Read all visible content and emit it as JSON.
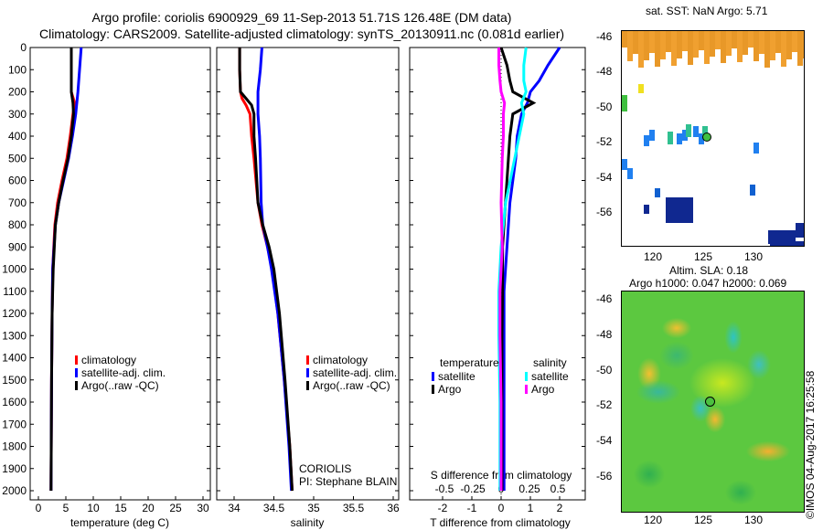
{
  "header": {
    "title_line1": "Argo profile: coriolis 6900929_69 11-Sep-2013 51.71S 126.48E (DM data)",
    "title_line2": "Climatology: CARS2009. Satellite-adjusted climatology: synTS_20130911.nc (0.081d earlier)"
  },
  "colors": {
    "climatology": "#ff0000",
    "satellite": "#0000ff",
    "argo": "#000000",
    "sal_satellite": "#00ffff",
    "sal_argo": "#ff00ff"
  },
  "chart_data": [
    {
      "type": "line",
      "name": "temperature-profile",
      "xlabel": "temperature (deg C)",
      "ylabel": "depth",
      "xlim": [
        -2,
        32
      ],
      "ylim": [
        2060,
        0
      ],
      "xticks": [
        0,
        5,
        10,
        15,
        20,
        25,
        30
      ],
      "yticks": [
        0,
        100,
        200,
        300,
        400,
        500,
        600,
        700,
        800,
        900,
        1000,
        1100,
        1200,
        1300,
        1400,
        1500,
        1600,
        1700,
        1800,
        1900,
        2000
      ],
      "legend": [
        "climatology",
        "satellite-adj. clim.",
        "Argo(..raw -QC)"
      ],
      "depth": [
        0,
        100,
        200,
        250,
        300,
        400,
        500,
        600,
        700,
        800,
        1000,
        1200,
        1500,
        2000
      ],
      "series": [
        {
          "name": "climatology",
          "values": [
            6.0,
            6.0,
            6.0,
            6.6,
            6.3,
            5.8,
            5.2,
            4.3,
            3.5,
            3.0,
            2.6,
            2.5,
            2.4,
            2.3
          ]
        },
        {
          "name": "satellite-adj. clim.",
          "values": [
            7.8,
            7.5,
            7.2,
            7.0,
            6.8,
            6.2,
            5.5,
            4.6,
            3.7,
            3.1,
            2.6,
            2.5,
            2.4,
            2.3
          ]
        },
        {
          "name": "Argo(..raw -QC)",
          "values": [
            6.0,
            6.0,
            6.0,
            6.3,
            6.4,
            6.0,
            5.4,
            4.5,
            3.7,
            3.1,
            2.7,
            2.5,
            2.4,
            2.3
          ]
        }
      ]
    },
    {
      "type": "line",
      "name": "salinity-profile",
      "xlabel": "salinity",
      "xlim": [
        33.8,
        36.1
      ],
      "ylim": [
        2060,
        0
      ],
      "xticks": [
        34,
        34.5,
        35,
        35.5,
        36
      ],
      "legend": [
        "climatology",
        "satellite-adj. clim.",
        "Argo(..raw -QC)"
      ],
      "annotations": [
        "CORIOLIS",
        "PI: Stephane BLAIN"
      ],
      "depth": [
        0,
        100,
        200,
        230,
        260,
        300,
        400,
        500,
        700,
        800,
        900,
        1000,
        1200,
        1500,
        1800,
        2000
      ],
      "series": [
        {
          "name": "climatology",
          "values": [
            34.07,
            34.07,
            34.08,
            34.1,
            34.15,
            34.2,
            34.22,
            34.25,
            34.3,
            34.35,
            34.42,
            34.48,
            34.55,
            34.63,
            34.7,
            34.73
          ]
        },
        {
          "name": "satellite-adj. clim.",
          "values": [
            34.35,
            34.33,
            34.3,
            34.3,
            34.3,
            34.3,
            34.32,
            34.33,
            34.34,
            34.36,
            34.42,
            34.47,
            34.55,
            34.63,
            34.69,
            34.72
          ]
        },
        {
          "name": "Argo(..raw -QC)",
          "values": [
            34.07,
            34.07,
            34.08,
            34.15,
            34.22,
            34.25,
            34.25,
            34.27,
            34.3,
            34.36,
            34.44,
            34.5,
            34.57,
            34.64,
            34.7,
            34.73
          ]
        }
      ]
    },
    {
      "type": "line",
      "name": "difference-profile",
      "xlabel": "T difference from climatology",
      "x2label": "S difference from climatology",
      "xlim": [
        -3.1,
        2.9
      ],
      "x2lim": [
        -0.775,
        0.725
      ],
      "xticks": [
        -2,
        -1,
        0,
        1,
        2
      ],
      "x2ticks": [
        "-0.5",
        "-0.25",
        "0",
        "0.25",
        "0.5"
      ],
      "legend_titles": [
        "temperature",
        "salinity"
      ],
      "legend": [
        "satellite",
        "Argo",
        "satellite",
        "Argo"
      ],
      "depth": [
        0,
        80,
        150,
        200,
        250,
        300,
        400,
        500,
        700,
        900,
        1100,
        1300,
        1600,
        2000
      ],
      "series": [
        {
          "name": "T satellite",
          "values": [
            2.0,
            1.6,
            1.3,
            1.0,
            0.9,
            0.7,
            0.55,
            0.5,
            0.3,
            0.2,
            0.1,
            0.1,
            0.1,
            0.1
          ]
        },
        {
          "name": "T Argo",
          "values": [
            0.0,
            0.2,
            0.3,
            0.4,
            1.1,
            0.4,
            0.3,
            0.25,
            0.15,
            0.05,
            0.05,
            0.03,
            0.03,
            0.03
          ]
        },
        {
          "name": "S satellite",
          "values": [
            0.22,
            0.2,
            0.2,
            0.22,
            0.18,
            0.2,
            0.16,
            0.12,
            0.04,
            0.0,
            -0.02,
            -0.02,
            -0.01,
            -0.01
          ]
        },
        {
          "name": "S Argo",
          "values": [
            -0.02,
            -0.02,
            -0.01,
            0.0,
            0.03,
            0.02,
            0.02,
            0.01,
            0.0,
            0.01,
            -0.01,
            -0.01,
            0.0,
            0.0
          ]
        }
      ]
    }
  ],
  "sst_map": {
    "title": "sat. SST: NaN Argo: 5.71",
    "lat_ticks": [
      "-46",
      "-48",
      "-50",
      "-52",
      "-54",
      "-56"
    ],
    "lon_ticks": [
      "120",
      "125",
      "130"
    ]
  },
  "sla_map": {
    "title_line1": "Altim. SLA: 0.18",
    "title_line2": "Argo h1000: 0.047 h2000: 0.069",
    "lat_ticks": [
      "-46",
      "-48",
      "-50",
      "-52",
      "-54",
      "-56"
    ],
    "lon_ticks": [
      "120",
      "125",
      "130"
    ]
  },
  "credit": "©IMOS 04-Aug-2017 16:25:58"
}
